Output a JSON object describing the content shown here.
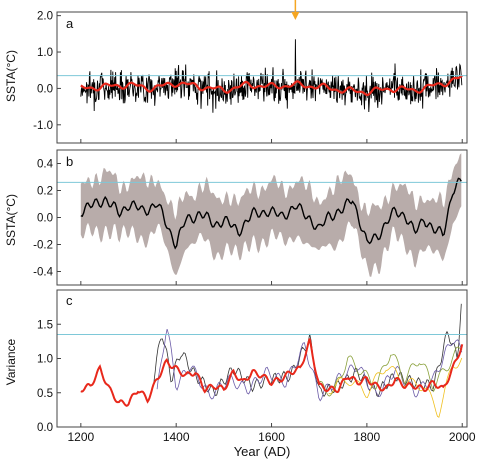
{
  "figure": {
    "xlabel": "Year (AD)",
    "x_ticks": [
      1200,
      1400,
      1600,
      1800,
      2000
    ],
    "xlim": [
      1150,
      2010
    ],
    "arrow_year": 1650,
    "colors": {
      "black": "#000000",
      "red": "#e8281b",
      "reference_line": "#7ec8d8",
      "band": "#b8acaa",
      "arrow": "#f5a623",
      "frame": "#444444"
    }
  },
  "chart_data": [
    {
      "panel_label": "a",
      "type": "line",
      "ylabel": "SSTA(°C)",
      "ylim": [
        -1.5,
        2.1
      ],
      "y_ticks": [
        -1.0,
        0.0,
        1.0,
        2.0
      ],
      "y_tick_labels": [
        "-1.0",
        "0.0",
        "1.0",
        "2.0"
      ],
      "reference_line": 0.35,
      "series": [
        {
          "values": "annual SSTA, black, roughly -1.0 to 1.3, spike of about 1.6 near 1650"
        },
        {
          "x": [
            1200,
            1250,
            1300,
            1350,
            1400,
            1450,
            1500,
            1550,
            1600,
            1650,
            1700,
            1750,
            1800,
            1850,
            1900,
            1950,
            2000
          ],
          "values": [
            0.0,
            0.05,
            0.1,
            0.0,
            0.15,
            0.05,
            -0.05,
            0.1,
            0.05,
            0.1,
            0.05,
            -0.05,
            -0.1,
            0.0,
            -0.05,
            0.1,
            0.3
          ]
        }
      ]
    },
    {
      "panel_label": "b",
      "type": "line",
      "ylabel": "SSTA(°C)",
      "ylim": [
        -0.5,
        0.5
      ],
      "y_ticks": [
        -0.4,
        -0.2,
        0.0,
        0.2,
        0.4
      ],
      "y_tick_labels": [
        "-0.4",
        "-0.2",
        "0.0",
        "0.2",
        "0.4"
      ],
      "reference_line": 0.26,
      "series": [
        {
          "x": [
            1200,
            1220,
            1250,
            1280,
            1300,
            1330,
            1360,
            1380,
            1400,
            1420,
            1450,
            1480,
            1500,
            1530,
            1560,
            1590,
            1620,
            1650,
            1680,
            1700,
            1720,
            1750,
            1770,
            1800,
            1830,
            1860,
            1880,
            1900,
            1920,
            1940,
            1960,
            1980,
            2000
          ],
          "values": [
            0.05,
            0.08,
            0.14,
            0.03,
            0.1,
            0.05,
            0.1,
            -0.05,
            -0.2,
            -0.02,
            0.03,
            -0.05,
            -0.02,
            -0.1,
            0.02,
            0.05,
            0.01,
            0.08,
            0.0,
            -0.1,
            0.02,
            0.05,
            0.15,
            -0.2,
            -0.1,
            0.05,
            0.02,
            -0.12,
            0.0,
            -0.1,
            -0.12,
            0.2,
            0.27
          ]
        }
      ],
      "band_half_width": 0.2
    },
    {
      "panel_label": "c",
      "type": "line",
      "ylabel": "Variance",
      "ylim": [
        0.0,
        2.0
      ],
      "y_ticks": [
        0.0,
        0.5,
        1.0,
        1.5
      ],
      "y_tick_labels": [
        "0.0",
        "0.5",
        "1.0",
        "1.5"
      ],
      "reference_line": 1.35,
      "series": [
        {
          "x": [
            1200,
            1220,
            1240,
            1260,
            1280,
            1300,
            1320,
            1340,
            1360,
            1380,
            1400,
            1420,
            1440,
            1460,
            1480,
            1500,
            1520,
            1540,
            1560,
            1580,
            1600,
            1620,
            1640,
            1660,
            1680,
            1700,
            1720,
            1740,
            1760,
            1780,
            1800,
            1820,
            1840,
            1860,
            1880,
            1900,
            1920,
            1940,
            1960,
            1980,
            2000
          ],
          "values": [
            0.55,
            0.6,
            0.85,
            0.55,
            0.35,
            0.35,
            0.55,
            0.4,
            0.7,
            0.95,
            0.85,
            0.75,
            0.8,
            0.55,
            0.6,
            0.55,
            0.8,
            0.65,
            0.8,
            0.75,
            0.65,
            0.7,
            0.8,
            0.85,
            1.25,
            0.6,
            0.55,
            0.55,
            0.75,
            0.65,
            0.7,
            0.6,
            0.55,
            0.7,
            0.6,
            0.6,
            0.55,
            0.65,
            0.55,
            0.85,
            1.2
          ],
          "color": "#e8281b"
        },
        {
          "x": [
            1350,
            1370,
            1390,
            1410,
            1440,
            1480,
            1520,
            1560,
            1600,
            1640,
            1680,
            1700,
            1740,
            1780,
            1820,
            1860,
            1900,
            1940,
            1970,
            1990,
            2000
          ],
          "values": [
            0.6,
            1.4,
            0.7,
            1.1,
            0.75,
            0.5,
            0.85,
            0.6,
            0.7,
            0.75,
            1.3,
            0.5,
            0.6,
            0.8,
            0.5,
            0.75,
            0.65,
            0.6,
            1.4,
            1.0,
            2.0
          ],
          "color": "#333333"
        },
        {
          "x": [
            1360,
            1380,
            1400,
            1430,
            1470,
            1510,
            1550,
            1590,
            1630,
            1670,
            1700,
            1740,
            1780,
            1820,
            1860,
            1900,
            1940,
            1980,
            2000
          ],
          "values": [
            0.5,
            1.5,
            0.6,
            0.9,
            0.45,
            0.7,
            0.55,
            0.8,
            0.65,
            1.2,
            0.45,
            0.7,
            0.9,
            0.45,
            0.85,
            0.5,
            0.7,
            1.3,
            1.1
          ],
          "color": "#6c5ca8"
        },
        {
          "x": [
            1700,
            1730,
            1760,
            1790,
            1820,
            1850,
            1880,
            1910,
            1940,
            1960,
            1990,
            2000
          ],
          "values": [
            0.6,
            0.5,
            1.0,
            0.8,
            0.6,
            1.1,
            0.7,
            1.0,
            0.6,
            0.8,
            1.1,
            1.2
          ],
          "color": "#8aa13b"
        },
        {
          "x": [
            1720,
            1760,
            1800,
            1840,
            1880,
            1920,
            1950,
            1980,
            2000
          ],
          "values": [
            0.55,
            0.7,
            0.5,
            0.9,
            0.65,
            0.6,
            0.2,
            0.9,
            1.0
          ],
          "color": "#f0c020"
        }
      ]
    }
  ]
}
